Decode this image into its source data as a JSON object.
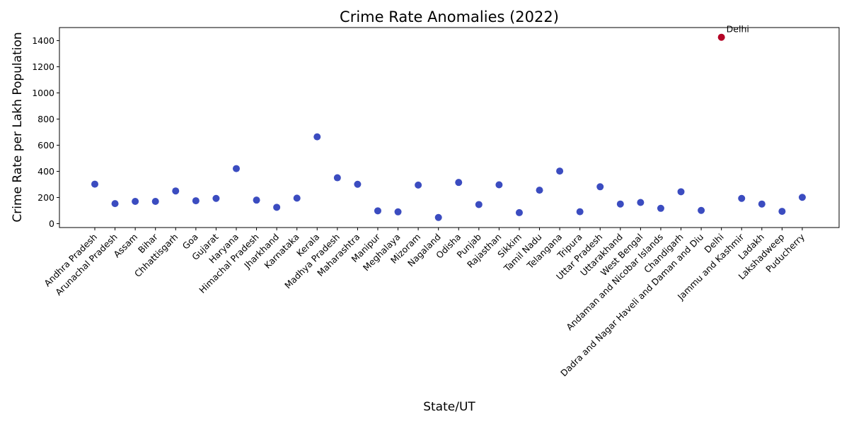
{
  "chart_data": {
    "type": "scatter",
    "title": "Crime Rate Anomalies (2022)",
    "xlabel": "State/UT",
    "ylabel": "Crime Rate per Lakh Population",
    "ylim": [
      -30,
      1500
    ],
    "yticks": [
      0,
      200,
      400,
      600,
      800,
      1000,
      1200,
      1400
    ],
    "grid": false,
    "colors": {
      "normal": "#3b4cc0",
      "anomaly": "#b40426"
    },
    "categories": [
      "Andhra Pradesh",
      "Arunachal Pradesh",
      "Assam",
      "Bihar",
      "Chhattisgarh",
      "Goa",
      "Gujarat",
      "Haryana",
      "Himachal Pradesh",
      "Jharkhand",
      "Karnataka",
      "Kerala",
      "Madhya Pradesh",
      "Maharashtra",
      "Manipur",
      "Meghalaya",
      "Mizoram",
      "Nagaland",
      "Odisha",
      "Punjab",
      "Rajasthan",
      "Sikkim",
      "Tamil Nadu",
      "Telangana",
      "Tripura",
      "Uttar Pradesh",
      "Uttarakhand",
      "West Bengal",
      "Andaman and Nicobar Islands",
      "Chandigarh",
      "Dadra and Nagar Haveli and Daman and Diu",
      "Delhi",
      "Jammu and Kashmir",
      "Ladakh",
      "Lakshadweep",
      "Puducherry"
    ],
    "values": [
      302,
      153,
      170,
      170,
      250,
      175,
      193,
      421,
      180,
      125,
      195,
      664,
      351,
      301,
      98,
      90,
      295,
      47,
      315,
      146,
      297,
      84,
      256,
      402,
      91,
      282,
      150,
      162,
      117,
      244,
      101,
      1426,
      193,
      150,
      94,
      201
    ],
    "anomalies": [
      false,
      false,
      false,
      false,
      false,
      false,
      false,
      false,
      false,
      false,
      false,
      false,
      false,
      false,
      false,
      false,
      false,
      false,
      false,
      false,
      false,
      false,
      false,
      false,
      false,
      false,
      false,
      false,
      false,
      false,
      false,
      true,
      false,
      false,
      false,
      false
    ],
    "annotations": [
      {
        "category": "Delhi",
        "text": "Delhi"
      }
    ]
  }
}
